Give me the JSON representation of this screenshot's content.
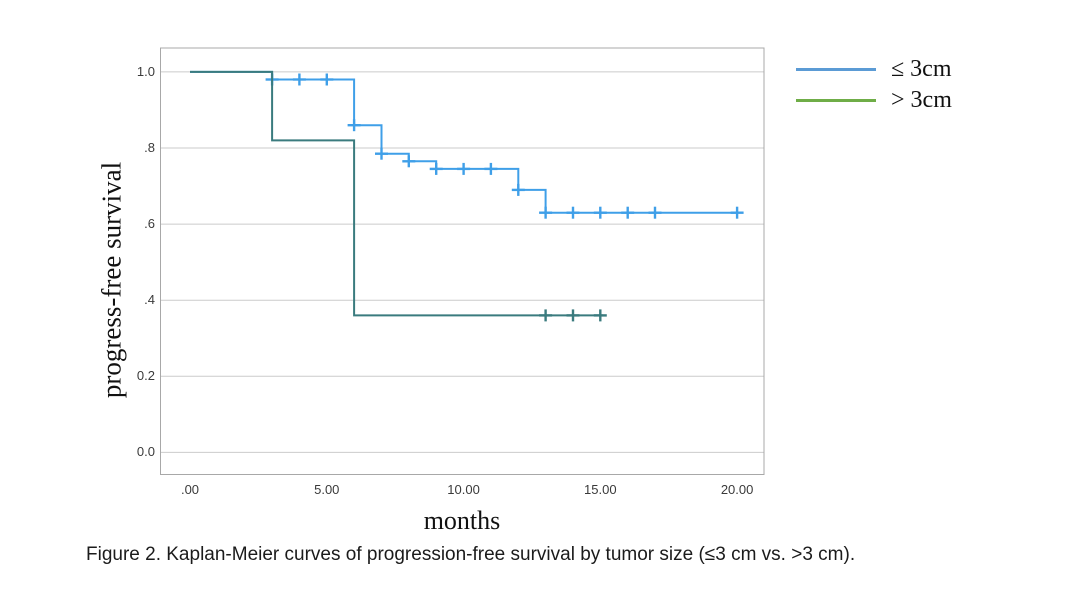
{
  "caption": "Figure 2. Kaplan-Meier curves of progression-free survival by tumor size (≤3 cm vs. >3 cm).",
  "chart_data": {
    "type": "line",
    "subtype": "kaplan-meier-step",
    "title": "",
    "xlabel": "months",
    "ylabel": "progress-free survival",
    "xlim": [
      -1.097,
      21.02
    ],
    "ylim": [
      -0.0594,
      1.0707
    ],
    "x_tick_values": [
      0,
      5,
      10,
      15,
      20
    ],
    "x_tick_labels": [
      ".00",
      "5.00",
      "10.00",
      "15.00",
      "20.00"
    ],
    "y_tick_values": [
      1.0,
      0.8,
      0.6,
      0.4,
      0.2,
      0.0
    ],
    "y_tick_labels": [
      "1.0",
      ".8",
      ".6",
      ".4",
      "0.2",
      "0.0"
    ],
    "grid": true,
    "grid_color": "#cbcbcb",
    "frame_color": "#a8a8a8",
    "legend_position": "right",
    "series": [
      {
        "name": "≤ 3cm",
        "color": "#3f9fe8",
        "legend_color": "#5b9bd5",
        "points": [
          [
            0,
            1.0
          ],
          [
            3,
            1.0
          ],
          [
            3,
            0.98
          ],
          [
            6,
            0.98
          ],
          [
            6,
            0.86
          ],
          [
            7,
            0.86
          ],
          [
            7,
            0.785
          ],
          [
            8,
            0.785
          ],
          [
            8,
            0.765
          ],
          [
            9,
            0.765
          ],
          [
            9,
            0.745
          ],
          [
            12,
            0.745
          ],
          [
            12,
            0.69
          ],
          [
            13,
            0.69
          ],
          [
            13,
            0.63
          ],
          [
            20,
            0.63
          ]
        ],
        "censors": [
          [
            3,
            0.98
          ],
          [
            4,
            0.98
          ],
          [
            5,
            0.98
          ],
          [
            6,
            0.86
          ],
          [
            7,
            0.785
          ],
          [
            8,
            0.765
          ],
          [
            9,
            0.745
          ],
          [
            10,
            0.745
          ],
          [
            11,
            0.745
          ],
          [
            12,
            0.69
          ],
          [
            13,
            0.63
          ],
          [
            14,
            0.63
          ],
          [
            15,
            0.63
          ],
          [
            16,
            0.63
          ],
          [
            17,
            0.63
          ],
          [
            20,
            0.63
          ]
        ]
      },
      {
        "name": "> 3cm",
        "color": "#3a7b7e",
        "legend_color": "#6fad47",
        "points": [
          [
            0,
            1.0
          ],
          [
            3,
            1.0
          ],
          [
            3,
            0.82
          ],
          [
            6,
            0.82
          ],
          [
            6,
            0.36
          ],
          [
            15.1,
            0.36
          ]
        ],
        "censors": [
          [
            13,
            0.36
          ],
          [
            14,
            0.36
          ],
          [
            15,
            0.36
          ]
        ]
      }
    ]
  }
}
